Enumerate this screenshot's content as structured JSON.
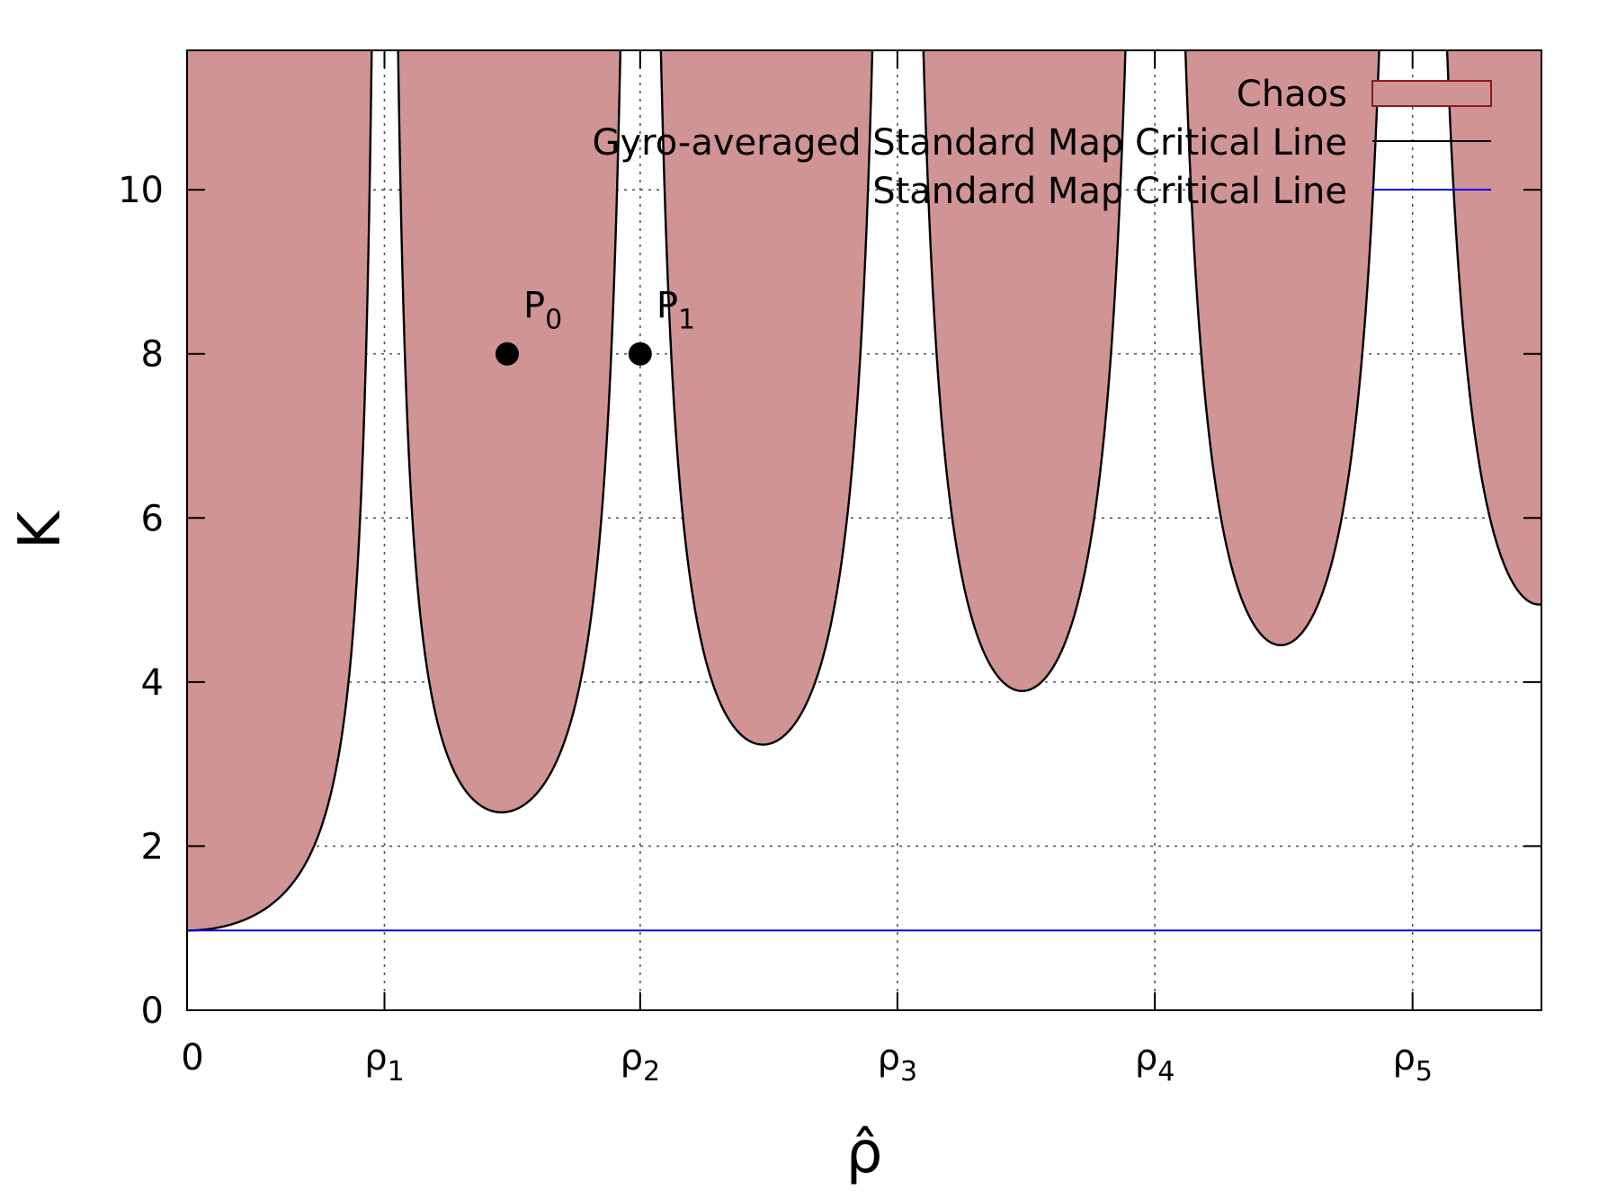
{
  "chart_data": {
    "type": "area",
    "title": "",
    "xlabel": "ρ̂",
    "ylabel": "K",
    "xlim": [
      0,
      16.5
    ],
    "ylim": [
      0,
      11.7
    ],
    "x_ticks": [
      {
        "value": 0,
        "label": "0",
        "sub": ""
      },
      {
        "value": 2.405,
        "label": "ρ",
        "sub": "1"
      },
      {
        "value": 5.52,
        "label": "ρ",
        "sub": "2"
      },
      {
        "value": 8.654,
        "label": "ρ",
        "sub": "3"
      },
      {
        "value": 11.79,
        "label": "ρ",
        "sub": "4"
      },
      {
        "value": 14.93,
        "label": "ρ",
        "sub": "5"
      }
    ],
    "y_ticks": [
      0,
      2,
      4,
      6,
      8,
      10
    ],
    "grid": true,
    "legend_position": "top-right",
    "colors": {
      "chaos_fill": "#d09494",
      "chaos_edge": "#8b1a1a",
      "gyro_line": "#000000",
      "standard_line": "#0000ee"
    },
    "series": [
      {
        "name": "Chaos",
        "kind": "fill",
        "description_of_region": "K above the gyro-averaged critical line"
      },
      {
        "name": "Gyro-averaged Standard Map Critical Line",
        "kind": "line"
      },
      {
        "name": "Standard Map Critical Line",
        "kind": "line",
        "y": 0.971635
      }
    ],
    "critical_line": {
      "k0": 0.971635,
      "function": "K = k0 / |J0(x)|"
    },
    "points": [
      {
        "label": "P",
        "sub": "0",
        "x": 3.9,
        "y": 8
      },
      {
        "label": "P",
        "sub": "1",
        "x": 5.52,
        "y": 8
      }
    ]
  }
}
